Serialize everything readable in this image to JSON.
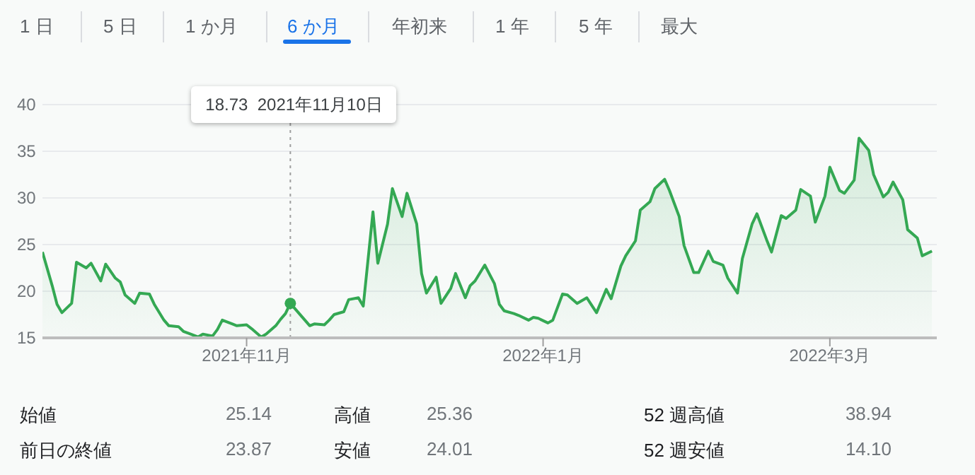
{
  "chart_data": {
    "type": "area",
    "x": [
      "2021-09-20",
      "2021-09-22",
      "2021-09-23",
      "2021-09-24",
      "2021-09-26",
      "2021-09-27",
      "2021-09-29",
      "2021-09-30",
      "2021-10-02",
      "2021-10-03",
      "2021-10-05",
      "2021-10-06",
      "2021-10-07",
      "2021-10-09",
      "2021-10-10",
      "2021-10-12",
      "2021-10-13",
      "2021-10-15",
      "2021-10-16",
      "2021-10-18",
      "2021-10-19",
      "2021-10-20",
      "2021-10-22",
      "2021-10-23",
      "2021-10-25",
      "2021-10-26",
      "2021-10-27",
      "2021-10-29",
      "2021-10-30",
      "2021-11-01",
      "2021-11-02",
      "2021-11-04",
      "2021-11-05",
      "2021-11-07",
      "2021-11-08",
      "2021-11-09",
      "2021-11-10",
      "2021-11-14",
      "2021-11-15",
      "2021-11-17",
      "2021-11-18",
      "2021-11-19",
      "2021-11-21",
      "2021-11-22",
      "2021-11-24",
      "2021-11-25",
      "2021-11-27",
      "2021-11-28",
      "2021-11-30",
      "2021-12-01",
      "2021-12-03",
      "2021-12-04",
      "2021-12-06",
      "2021-12-07",
      "2021-12-08",
      "2021-12-10",
      "2021-12-11",
      "2021-12-13",
      "2021-12-14",
      "2021-12-16",
      "2021-12-17",
      "2021-12-18",
      "2021-12-20",
      "2021-12-22",
      "2021-12-23",
      "2021-12-24",
      "2021-12-26",
      "2021-12-27",
      "2021-12-29",
      "2021-12-30",
      "2021-12-31",
      "2022-01-02",
      "2022-01-03",
      "2022-01-05",
      "2022-01-06",
      "2022-01-08",
      "2022-01-10",
      "2022-01-11",
      "2022-01-12",
      "2022-01-14",
      "2022-01-15",
      "2022-01-17",
      "2022-01-18",
      "2022-01-20",
      "2022-01-21",
      "2022-01-23",
      "2022-01-24",
      "2022-01-26",
      "2022-01-27",
      "2022-01-29",
      "2022-01-30",
      "2022-02-01",
      "2022-02-02",
      "2022-02-04",
      "2022-02-05",
      "2022-02-07",
      "2022-02-08",
      "2022-02-10",
      "2022-02-11",
      "2022-02-13",
      "2022-02-14",
      "2022-02-16",
      "2022-02-17",
      "2022-02-19",
      "2022-02-20",
      "2022-02-22",
      "2022-02-23",
      "2022-02-25",
      "2022-02-26",
      "2022-02-28",
      "2022-03-01",
      "2022-03-03",
      "2022-03-04",
      "2022-03-06",
      "2022-03-07",
      "2022-03-09",
      "2022-03-10",
      "2022-03-12",
      "2022-03-13",
      "2022-03-14",
      "2022-03-16",
      "2022-03-17",
      "2022-03-19",
      "2022-03-20",
      "2022-03-22"
    ],
    "series": [
      {
        "color": "#34a853",
        "values": [
          24.2,
          20.6,
          18.6,
          17.7,
          18.7,
          23.1,
          22.5,
          23.0,
          21.1,
          22.9,
          21.4,
          21.0,
          19.6,
          18.7,
          19.8,
          19.7,
          18.6,
          16.9,
          16.3,
          16.2,
          15.7,
          15.5,
          15.1,
          15.4,
          15.2,
          15.9,
          16.9,
          16.5,
          16.3,
          16.4,
          16.0,
          15.1,
          15.4,
          16.3,
          17.0,
          17.6,
          18.7,
          16.3,
          16.5,
          16.4,
          16.9,
          17.5,
          17.8,
          19.1,
          19.3,
          18.4,
          28.5,
          23.0,
          27.2,
          31.0,
          28.0,
          30.5,
          27.2,
          21.9,
          19.8,
          21.5,
          18.7,
          20.3,
          21.9,
          19.3,
          20.6,
          21.1,
          22.8,
          20.8,
          18.6,
          17.9,
          17.6,
          17.4,
          16.9,
          17.2,
          17.1,
          16.6,
          16.9,
          19.7,
          19.6,
          18.7,
          19.3,
          18.5,
          17.7,
          20.2,
          19.2,
          22.7,
          23.8,
          25.4,
          28.7,
          29.6,
          31.0,
          32.0,
          30.8,
          28.0,
          24.9,
          22.0,
          22.0,
          24.3,
          23.2,
          22.8,
          21.4,
          19.8,
          23.5,
          27.2,
          28.3,
          25.5,
          24.2,
          28.1,
          27.8,
          28.7,
          30.9,
          30.2,
          27.4,
          30.2,
          33.3,
          30.8,
          30.5,
          31.9,
          36.4,
          35.1,
          32.5,
          30.1,
          30.6,
          31.7,
          29.8,
          26.6,
          25.7,
          23.8,
          24.3
        ]
      }
    ],
    "xlim": [
      "2021-09-20",
      "2022-03-23"
    ],
    "xticks": [
      {
        "value": "2021-11-01",
        "label": "2021年11月"
      },
      {
        "value": "2022-01-01",
        "label": "2022年1月"
      },
      {
        "value": "2022-03-01",
        "label": "2022年3月"
      }
    ],
    "ylim": [
      15,
      40
    ],
    "yticks": [
      15,
      20,
      25,
      30,
      35,
      40
    ],
    "grid": "y",
    "ref_lines": [
      {
        "axis": "x",
        "value": "2021-11-10",
        "line_style": "dotted",
        "color": "#9e9e9e"
      }
    ],
    "annotations": [
      "1 日",
      "5 日",
      "1 か月",
      "6 か月",
      "年初来",
      "1 年",
      "5 年",
      "最大",
      "18.73  2021年11月10日",
      "始値",
      "25.14",
      "高値",
      "25.36",
      "52 週高値",
      "38.94",
      "前日の終値",
      "23.87",
      "安値",
      "24.01",
      "52 週安値",
      "14.10"
    ]
  }
}
